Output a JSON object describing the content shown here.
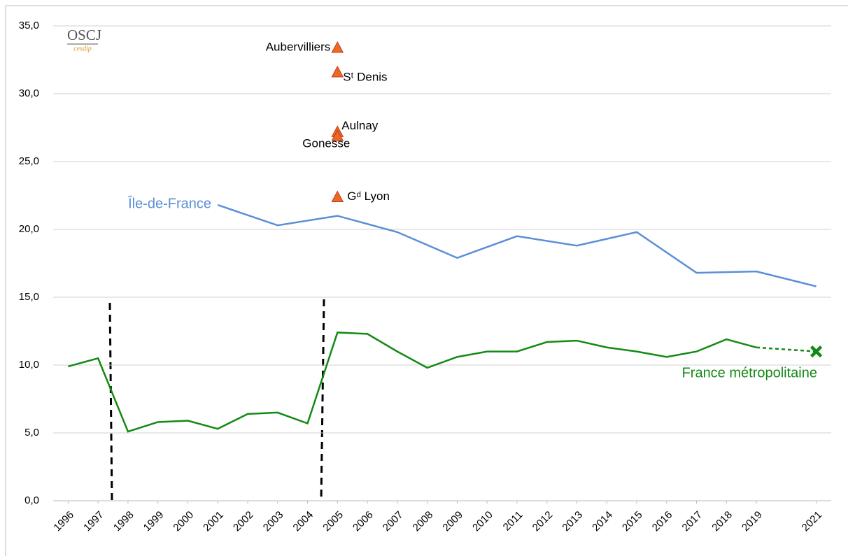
{
  "chart_data": {
    "type": "line",
    "logo": {
      "title": "OSCJ",
      "subtitle": "cesdip"
    },
    "xlim": [
      1995.5,
      2021.5
    ],
    "xticks": [
      1996,
      1997,
      1998,
      1999,
      2000,
      2001,
      2002,
      2003,
      2004,
      2005,
      2006,
      2007,
      2008,
      2009,
      2010,
      2011,
      2012,
      2013,
      2014,
      2015,
      2016,
      2017,
      2018,
      2019,
      2021
    ],
    "ylim": [
      0,
      35
    ],
    "yticks": [
      {
        "value": 0,
        "label": "0,0"
      },
      {
        "value": 5,
        "label": "5,0"
      },
      {
        "value": 10,
        "label": "10,0"
      },
      {
        "value": 15,
        "label": "15,0"
      },
      {
        "value": 20,
        "label": "20,0"
      },
      {
        "value": 25,
        "label": "25,0"
      },
      {
        "value": 30,
        "label": "30,0"
      },
      {
        "value": 35,
        "label": "35,0"
      }
    ],
    "grid": true,
    "series": [
      {
        "name": "France métropolitaine",
        "color": "#138a13",
        "dashed_last": true,
        "x": [
          1996,
          1997,
          1998,
          1999,
          2000,
          2001,
          2002,
          2003,
          2004,
          2005,
          2006,
          2007,
          2008,
          2009,
          2010,
          2011,
          2012,
          2013,
          2014,
          2015,
          2016,
          2017,
          2018,
          2019,
          2021
        ],
        "values": [
          9.9,
          10.5,
          5.1,
          5.8,
          5.9,
          5.3,
          6.4,
          6.5,
          5.7,
          12.4,
          12.3,
          11.0,
          9.8,
          10.6,
          11.0,
          11.0,
          11.7,
          11.8,
          11.3,
          11.0,
          10.6,
          11.0,
          11.9,
          11.3,
          11.0
        ]
      },
      {
        "name": "Île-de-France",
        "color": "#5b8fd6",
        "x": [
          2001,
          2003,
          2005,
          2007,
          2009,
          2011,
          2013,
          2015,
          2017,
          2019,
          2021
        ],
        "values": [
          21.8,
          20.3,
          21.0,
          19.8,
          17.9,
          19.5,
          18.8,
          19.8,
          16.8,
          16.9,
          15.8
        ]
      }
    ],
    "points": {
      "color": "#ec6a1e",
      "items": [
        {
          "label": "Aubervilliers",
          "x": 2005,
          "value": 33.4
        },
        {
          "label": "Sᵗ Denis",
          "x": 2005,
          "value": 31.6
        },
        {
          "label": "Aulnay",
          "x": 2005,
          "value": 27.2
        },
        {
          "label": "Gonesse",
          "x": 2005,
          "value": 26.9
        },
        {
          "label": "Gᵈ Lyon",
          "x": 2005,
          "value": 22.4
        }
      ]
    }
  }
}
